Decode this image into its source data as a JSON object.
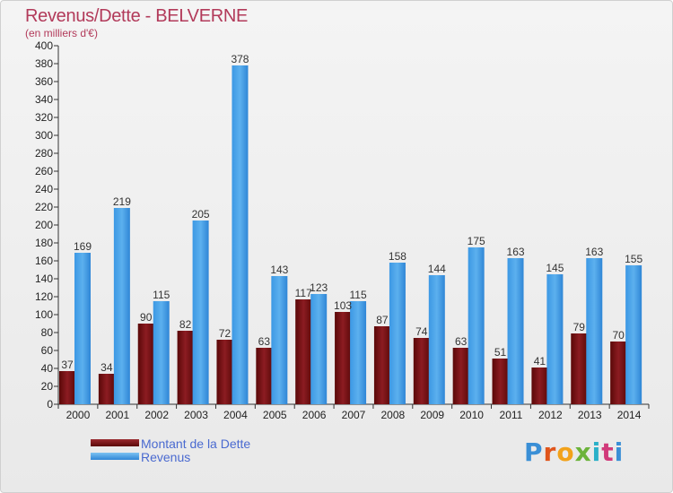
{
  "header": {
    "title": "Revenus/Dette - BELVERNE",
    "subtitle": "(en milliers d'€)"
  },
  "legend": {
    "debt_label": "Montant de la Dette",
    "revenue_label": "Revenus"
  },
  "logo": {
    "text": "Proxiti"
  },
  "colors": {
    "debt": "#6b0c0c",
    "debt_light": "#b0404a",
    "revenue": "#2f8fe0",
    "revenue_light": "#66b6ee",
    "title": "#b23a5a",
    "legend_text": "#4a6ad0"
  },
  "chart_data": {
    "type": "bar",
    "title": "Revenus/Dette - BELVERNE",
    "subtitle": "(en milliers d'€)",
    "categories": [
      "2000",
      "2001",
      "2002",
      "2003",
      "2004",
      "2005",
      "2006",
      "2007",
      "2008",
      "2009",
      "2010",
      "2011",
      "2012",
      "2013",
      "2014"
    ],
    "series": [
      {
        "name": "Montant de la Dette",
        "values": [
          37,
          34,
          90,
          82,
          72,
          63,
          117,
          103,
          87,
          74,
          63,
          51,
          41,
          79,
          70
        ]
      },
      {
        "name": "Revenus",
        "values": [
          169,
          219,
          115,
          205,
          378,
          143,
          123,
          115,
          158,
          144,
          175,
          163,
          145,
          163,
          155
        ]
      }
    ],
    "ylim": [
      0,
      400
    ],
    "ytick_step": 20,
    "grid": false,
    "legend_position": "bottom-left"
  }
}
